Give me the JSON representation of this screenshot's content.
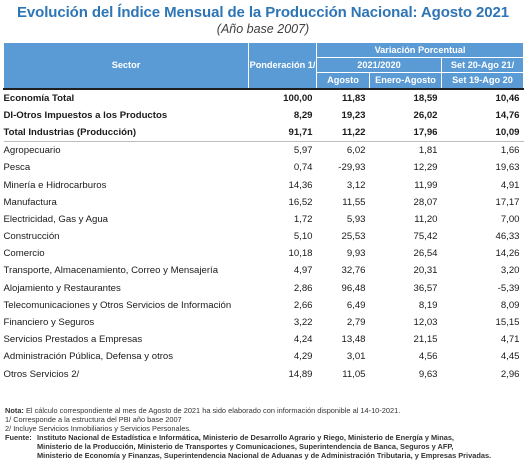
{
  "title": "Evolución del Índice Mensual de la Producción Nacional: Agosto 2021",
  "subtitle": "(Año base 2007)",
  "header": {
    "sector": "Sector",
    "ponderacion": "Ponderación 1/",
    "variacion": "Variación Porcentual",
    "period_2021_2020": "2021/2020",
    "agosto": "Agosto",
    "enero_agosto": "Enero-Agosto",
    "set_a": "Set 20-Ago 21/",
    "set_b": "Set 19-Ago 20"
  },
  "rows": [
    {
      "sector": "Economía Total",
      "ponderacion": "100,00",
      "agosto": "11,83",
      "enero_agosto": "18,59",
      "set": "10,46",
      "bold": true,
      "level": 0
    },
    {
      "sector": "DI-Otros Impuestos a los Productos",
      "ponderacion": "8,29",
      "agosto": "19,23",
      "enero_agosto": "26,02",
      "set": "14,76",
      "bold": true,
      "level": 1
    },
    {
      "sector": "Total Industrias (Producción)",
      "ponderacion": "91,71",
      "agosto": "11,22",
      "enero_agosto": "17,96",
      "set": "10,09",
      "bold": true,
      "level": 1
    },
    {
      "sector": "Agropecuario",
      "ponderacion": "5,97",
      "agosto": "6,02",
      "enero_agosto": "1,81",
      "set": "1,66",
      "bold": false,
      "level": 2
    },
    {
      "sector": "Pesca",
      "ponderacion": "0,74",
      "agosto": "-29,93",
      "enero_agosto": "12,29",
      "set": "19,63",
      "bold": false,
      "level": 2
    },
    {
      "sector": "Minería e Hidrocarburos",
      "ponderacion": "14,36",
      "agosto": "3,12",
      "enero_agosto": "11,99",
      "set": "4,91",
      "bold": false,
      "level": 2
    },
    {
      "sector": "Manufactura",
      "ponderacion": "16,52",
      "agosto": "11,55",
      "enero_agosto": "28,07",
      "set": "17,17",
      "bold": false,
      "level": 2
    },
    {
      "sector": "Electricidad, Gas y Agua",
      "ponderacion": "1,72",
      "agosto": "5,93",
      "enero_agosto": "11,20",
      "set": "7,00",
      "bold": false,
      "level": 2
    },
    {
      "sector": "Construcción",
      "ponderacion": "5,10",
      "agosto": "25,53",
      "enero_agosto": "75,42",
      "set": "46,33",
      "bold": false,
      "level": 2
    },
    {
      "sector": "Comercio",
      "ponderacion": "10,18",
      "agosto": "9,93",
      "enero_agosto": "26,54",
      "set": "14,26",
      "bold": false,
      "level": 2
    },
    {
      "sector": "Transporte, Almacenamiento, Correo y Mensajería",
      "ponderacion": "4,97",
      "agosto": "32,76",
      "enero_agosto": "20,31",
      "set": "3,20",
      "bold": false,
      "level": 2
    },
    {
      "sector": "Alojamiento y Restaurantes",
      "ponderacion": "2,86",
      "agosto": "96,48",
      "enero_agosto": "36,57",
      "set": "-5,39",
      "bold": false,
      "level": 2
    },
    {
      "sector": "Telecomunicaciones y Otros Servicios de Información",
      "ponderacion": "2,66",
      "agosto": "6,49",
      "enero_agosto": "8,19",
      "set": "8,09",
      "bold": false,
      "level": 2
    },
    {
      "sector": "Financiero y Seguros",
      "ponderacion": "3,22",
      "agosto": "2,79",
      "enero_agosto": "12,03",
      "set": "15,15",
      "bold": false,
      "level": 2
    },
    {
      "sector": "Servicios Prestados a Empresas",
      "ponderacion": "4,24",
      "agosto": "13,48",
      "enero_agosto": "21,15",
      "set": "4,71",
      "bold": false,
      "level": 2
    },
    {
      "sector": "Administración Pública, Defensa y otros",
      "ponderacion": "4,29",
      "agosto": "3,01",
      "enero_agosto": "4,56",
      "set": "4,45",
      "bold": false,
      "level": 2
    },
    {
      "sector": "Otros Servicios 2/",
      "ponderacion": "14,89",
      "agosto": "11,05",
      "enero_agosto": "9,63",
      "set": "2,96",
      "bold": false,
      "level": 2
    }
  ],
  "notes": {
    "nota_label": "Nota:",
    "nota_text": "El cálculo correspondiente al mes de Agosto de 2021 ha sido elaborado con información disponible al 14-10-2021.",
    "note1": "1/ Corresponde a la estructura del PBI año base 2007",
    "note2": "2/ Incluye Servicios Inmobiliarios y Servicios Personales.",
    "fuente_label": "Fuente:",
    "fuente_line1": "Instituto Nacional de Estadística e Informática, Ministerio de Desarrollo Agrario y Riego, Ministerio de Energía y Minas,",
    "fuente_line2": "Ministerio de la Producción, Ministerio de Transportes y Comunicaciones, Superintendencia de Banca, Seguros y AFP,",
    "fuente_line3": "Ministerio de Economía y Finanzas, Superintendencia Nacional de Aduanas y de Administración Tributaria, y Empresas Privadas."
  }
}
